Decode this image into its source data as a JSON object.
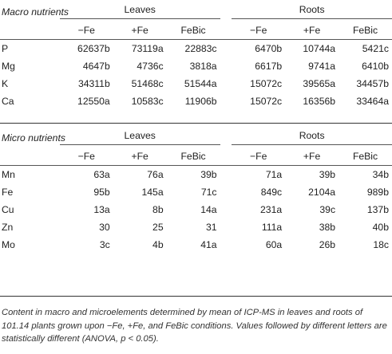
{
  "macro": {
    "section_title": "Macro nutrients",
    "group_leaves": "Leaves",
    "group_roots": "Roots",
    "columns": [
      "−Fe",
      "+Fe",
      "FeBic",
      "−Fe",
      "+Fe",
      "FeBic"
    ],
    "rows": [
      {
        "label": "P",
        "values": [
          "62637b",
          "73119a",
          "22883c",
          "6470b",
          "10744a",
          "5421c"
        ]
      },
      {
        "label": "Mg",
        "values": [
          "4647b",
          "4736c",
          "3818a",
          "6617b",
          "9741a",
          "6410b"
        ]
      },
      {
        "label": "K",
        "values": [
          "34311b",
          "51468c",
          "51544a",
          "15072c",
          "39565a",
          "34457b"
        ]
      },
      {
        "label": "Ca",
        "values": [
          "12550a",
          "10583c",
          "11906b",
          "15072c",
          "16356b",
          "33464a"
        ]
      }
    ]
  },
  "micro": {
    "section_title": "Micro nutrients",
    "group_leaves": "Leaves",
    "group_roots": "Roots",
    "columns": [
      "−Fe",
      "+Fe",
      "FeBic",
      "−Fe",
      "+Fe",
      "FeBic"
    ],
    "rows": [
      {
        "label": "Mn",
        "values": [
          "63a",
          "76a",
          "39b",
          "71a",
          "39b",
          "34b"
        ]
      },
      {
        "label": "Fe",
        "values": [
          "95b",
          "145a",
          "71c",
          "849c",
          "2104a",
          "989b"
        ]
      },
      {
        "label": "Cu",
        "values": [
          "13a",
          "8b",
          "14a",
          "231a",
          "39c",
          "137b"
        ]
      },
      {
        "label": "Zn",
        "values": [
          "30",
          "25",
          "31",
          "111a",
          "38b",
          "40b"
        ]
      },
      {
        "label": "Mo",
        "values": [
          "3c",
          "4b",
          "41a",
          "60a",
          "26b",
          "18c"
        ]
      }
    ]
  },
  "caption": "Content in macro and microelements determined by mean of ICP-MS in leaves and roots of 101.14 plants grown upon −Fe, +Fe, and FeBic conditions. Values followed by different letters are statistically different (ANOVA, p < 0.05)."
}
